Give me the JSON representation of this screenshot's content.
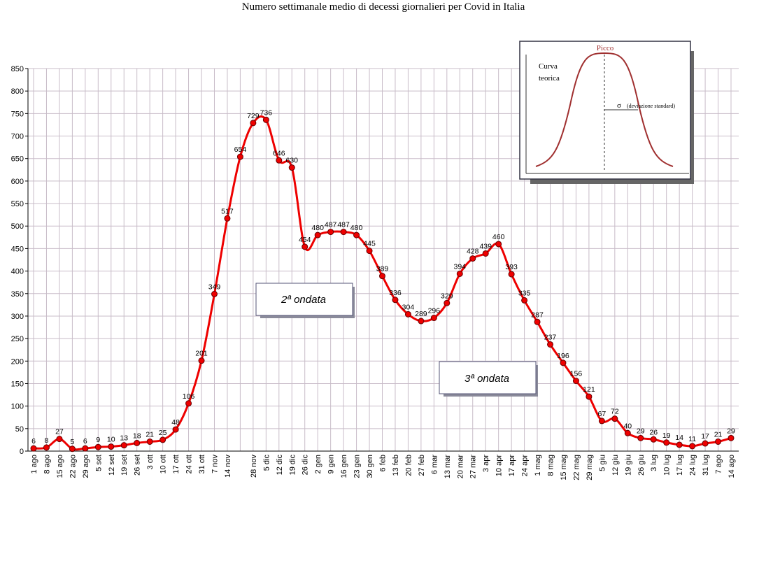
{
  "chart_data": {
    "type": "line",
    "title": "Numero settimanale medio di decessi giornalieri per Covid in Italia",
    "categories": [
      "1 ago",
      "8 ago",
      "15 ago",
      "22 ago",
      "29 ago",
      "5 set",
      "12 set",
      "19 set",
      "26 set",
      "3 ott",
      "10 ott",
      "17 ott",
      "24 ott",
      "31 ott",
      "7 nov",
      "14 nov",
      null,
      "28 nov",
      "5 dic",
      "12 dic",
      "19 dic",
      "26 dic",
      "2 gen",
      "9 gen",
      "16 gen",
      "23 gen",
      "30 gen",
      "6 feb",
      "13 feb",
      "20 feb",
      "27 feb",
      "6 mar",
      "13 mar",
      "20 mar",
      "27 mar",
      "3 apr",
      "10 apr",
      "17 apr",
      "24 apr",
      "1 mag",
      "8 mag",
      "15 mag",
      "22 mag",
      "29 mag",
      "5 giu",
      "12 giu",
      "19 giu",
      "26 giu",
      "3 lug",
      "10 lug",
      "17 lug",
      "24 lug",
      "31 lug",
      "7 ago",
      "14 ago"
    ],
    "series": [
      {
        "color": "#ee0000",
        "values": [
          6,
          8,
          27,
          5,
          6,
          9,
          10,
          13,
          18,
          21,
          25,
          48,
          106,
          201,
          349,
          517,
          654,
          729,
          736,
          646,
          630,
          454,
          480,
          487,
          487,
          480,
          445,
          389,
          336,
          304,
          289,
          296,
          329,
          394,
          428,
          439,
          460,
          393,
          335,
          287,
          237,
          196,
          156,
          121,
          67,
          72,
          40,
          29,
          26,
          19,
          14,
          11,
          17,
          21,
          29
        ]
      }
    ],
    "ylim": [
      0,
      850
    ],
    "yticks": [
      0,
      50,
      100,
      150,
      200,
      250,
      300,
      350,
      400,
      450,
      500,
      550,
      600,
      650,
      700,
      750,
      800,
      850
    ],
    "grid": true,
    "annotations": [
      "2ª ondata",
      "3ª ondata"
    ],
    "inset": {
      "peak": "Picco",
      "curve": [
        "Curva",
        "teorica"
      ],
      "sigma": "σ",
      "sigma_note": "(deviazione standard)"
    }
  }
}
